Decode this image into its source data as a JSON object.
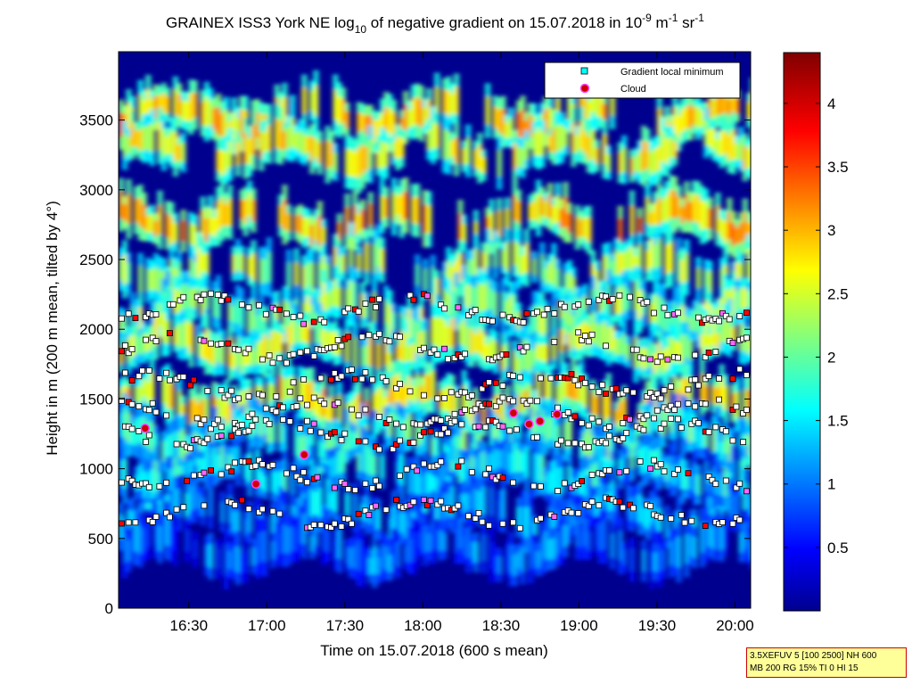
{
  "chart_data": {
    "type": "heatmap",
    "title": {
      "prefix": "GRAINEX ISS3 York NE log",
      "prefix_sub": "10",
      "middle": " of negative gradient on 15.07.2018 in 10",
      "unit_exp1": "-9",
      "unit_mid": " m",
      "unit_exp2": "-1",
      "unit_sr": " sr",
      "unit_exp3": "-1"
    },
    "xlabel": "Time on 15.07.2018 (600 s mean)",
    "ylabel": "Height in m (200 m mean, tilted by 4°)",
    "x_ticks": [
      "16:30",
      "17:00",
      "17:30",
      "18:00",
      "18:30",
      "19:00",
      "19:30",
      "20:00"
    ],
    "x_tick_hours": [
      16.5,
      17.0,
      17.5,
      18.0,
      18.5,
      19.0,
      19.5,
      20.0
    ],
    "xlim_hours": [
      16.05,
      20.1
    ],
    "y_ticks": [
      0,
      500,
      1000,
      1500,
      2000,
      2500,
      3000,
      3500
    ],
    "ylim": [
      0,
      3990
    ],
    "colorbar": {
      "ticks": [
        "0.5",
        "1",
        "1.5",
        "2",
        "2.5",
        "3",
        "3.5",
        "4"
      ],
      "tick_values": [
        0.5,
        1,
        1.5,
        2,
        2.5,
        3,
        3.5,
        4
      ],
      "range": [
        0,
        4.4
      ],
      "colormap": "jet"
    },
    "legend": {
      "position": "top-right",
      "entries": [
        {
          "label": "Gradient local minimum",
          "color": "#00ffff"
        },
        {
          "label": "Cloud",
          "color": "#cc0000"
        }
      ]
    },
    "layers": [
      {
        "base_m": 3450,
        "value": 2.8,
        "gap_hours": [
          [
            17.3,
            17.4
          ],
          [
            18.2,
            18.35
          ],
          [
            19.2,
            19.45
          ]
        ]
      },
      {
        "base_m": 3200,
        "value": 2.6,
        "gap_hours": [
          [
            16.45,
            16.6
          ],
          [
            17.85,
            18.0
          ],
          [
            19.6,
            19.75
          ]
        ]
      },
      {
        "base_m": 2700,
        "value": 2.9,
        "gap_hours": [
          [
            16.9,
            17.05
          ],
          [
            18.05,
            18.2
          ],
          [
            19.05,
            19.2
          ]
        ]
      },
      {
        "base_m": 2350,
        "value": 2.3,
        "gap_hours": [
          [
            16.6,
            16.7
          ],
          [
            17.75,
            17.9
          ],
          [
            18.95,
            19.05
          ]
        ]
      },
      {
        "base_m": 2050,
        "value": 2.2,
        "gap_hours": []
      },
      {
        "base_m": 1800,
        "value": 2.4,
        "gap_hours": []
      },
      {
        "base_m": 1400,
        "value": 2.7,
        "gap_hours": []
      },
      {
        "base_m": 1150,
        "value": 1.8,
        "gap_hours": []
      },
      {
        "base_m": 900,
        "value": 1.5,
        "gap_hours": []
      },
      {
        "base_m": 600,
        "value": 1.2,
        "gap_hours": []
      },
      {
        "base_m": 350,
        "value": 0.9,
        "gap_hours": []
      }
    ],
    "minima_layers_m": [
      2150,
      1870,
      1600,
      1400,
      1250,
      950,
      680
    ],
    "cloud_points": [
      {
        "t": 16.22,
        "h": 1290
      },
      {
        "t": 16.93,
        "h": 890
      },
      {
        "t": 17.24,
        "h": 1100
      },
      {
        "t": 18.58,
        "h": 1400
      },
      {
        "t": 18.68,
        "h": 1320
      },
      {
        "t": 18.75,
        "h": 1340
      },
      {
        "t": 18.86,
        "h": 1390
      }
    ]
  },
  "annotation": {
    "line1": "3.5XEFUV 5 [100 2500] NH 600",
    "line2": "MB 200 RG 15% TI 0 HI 15"
  }
}
